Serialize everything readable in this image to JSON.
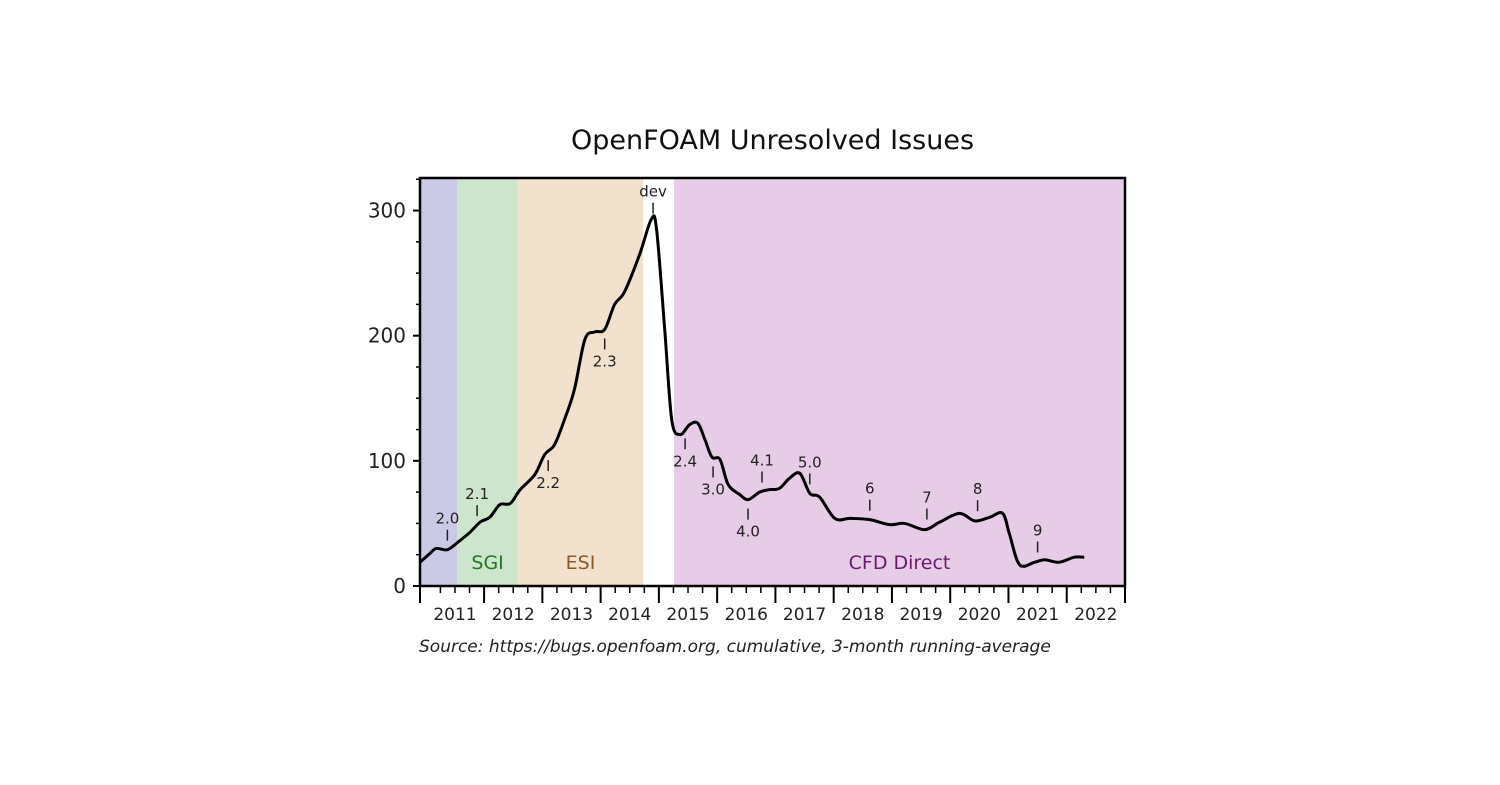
{
  "chart_data": {
    "type": "line",
    "title": "OpenFOAM Unresolved Issues",
    "source_note": "Source: https://bugs.openfoam.org, cumulative, 3-month running-average",
    "xlim": [
      2010.9,
      2023.0
    ],
    "ylim": [
      0,
      326
    ],
    "y_ticks": [
      0,
      100,
      200,
      300
    ],
    "x_tick_labels": [
      "2011",
      "2012",
      "2013",
      "2014",
      "2015",
      "2016",
      "2017",
      "2018",
      "2019",
      "2020",
      "2021",
      "2022"
    ],
    "grid": false,
    "regions": [
      {
        "label": "",
        "from": 2010.9,
        "to": 2011.54,
        "color": "#cbcae6",
        "text_color": "#000000"
      },
      {
        "label": "SGI",
        "from": 2011.54,
        "to": 2012.58,
        "color": "#cde5cc",
        "text_color": "#1f7a1f"
      },
      {
        "label": "ESI",
        "from": 2012.58,
        "to": 2014.73,
        "color": "#f2e1cd",
        "text_color": "#8a5a2a"
      },
      {
        "label": "",
        "from": 2014.73,
        "to": 2015.26,
        "color": "#ffffff",
        "text_color": "#000000"
      },
      {
        "label": "CFD Direct",
        "from": 2015.26,
        "to": 2023.0,
        "color": "#e6cce6",
        "text_color": "#6a1a6a"
      }
    ],
    "series": [
      {
        "x": [
          2010.9,
          2011.07,
          2011.18,
          2011.37,
          2011.55,
          2011.76,
          2011.93,
          2012.1,
          2012.27,
          2012.45,
          2012.62,
          2012.87,
          2013.04,
          2013.21,
          2013.38,
          2013.55,
          2013.73,
          2013.9,
          2014.07,
          2014.24,
          2014.41,
          2014.67,
          2014.87,
          2014.96,
          2015.1,
          2015.22,
          2015.36,
          2015.53,
          2015.67,
          2015.79,
          2015.91,
          2016.05,
          2016.19,
          2016.39,
          2016.53,
          2016.73,
          2016.9,
          2017.07,
          2017.24,
          2017.42,
          2017.59,
          2017.76,
          2018.02,
          2018.28,
          2018.62,
          2018.96,
          2019.22,
          2019.56,
          2019.82,
          2020.16,
          2020.42,
          2020.68,
          2020.9,
          2021.02,
          2021.19,
          2021.45,
          2021.62,
          2021.87,
          2022.13,
          2022.3
        ],
        "y": [
          19,
          26,
          30,
          29,
          35,
          43,
          51,
          55,
          65,
          66,
          77,
          89,
          105,
          113,
          133,
          157,
          197,
          203,
          205,
          225,
          235,
          265,
          293,
          285,
          205,
          133,
          121,
          129,
          130,
          117,
          103,
          101,
          81,
          73,
          69,
          75,
          77,
          78,
          86,
          90,
          74,
          71,
          54,
          54,
          53,
          49,
          50,
          45,
          51,
          58,
          52,
          55,
          58,
          41,
          17,
          19,
          21,
          19,
          23,
          23
        ],
        "color": "#000000"
      }
    ],
    "annotations": [
      {
        "label": "2.0",
        "x": 2011.37,
        "position": "above"
      },
      {
        "label": "2.1",
        "x": 2011.88,
        "position": "above"
      },
      {
        "label": "2.2",
        "x": 2013.1,
        "position": "below"
      },
      {
        "label": "2.3",
        "x": 2014.07,
        "position": "below"
      },
      {
        "label": "dev",
        "x": 2014.9,
        "position": "above"
      },
      {
        "label": "2.4",
        "x": 2015.45,
        "position": "below"
      },
      {
        "label": "3.0",
        "x": 2015.93,
        "position": "below"
      },
      {
        "label": "4.0",
        "x": 2016.53,
        "position": "below"
      },
      {
        "label": "4.1",
        "x": 2016.77,
        "position": "above"
      },
      {
        "label": "5.0",
        "x": 2017.59,
        "position": "above"
      },
      {
        "label": "6",
        "x": 2018.62,
        "position": "above"
      },
      {
        "label": "7",
        "x": 2019.6,
        "position": "above"
      },
      {
        "label": "8",
        "x": 2020.47,
        "position": "above"
      },
      {
        "label": "9",
        "x": 2021.5,
        "position": "above"
      }
    ]
  }
}
